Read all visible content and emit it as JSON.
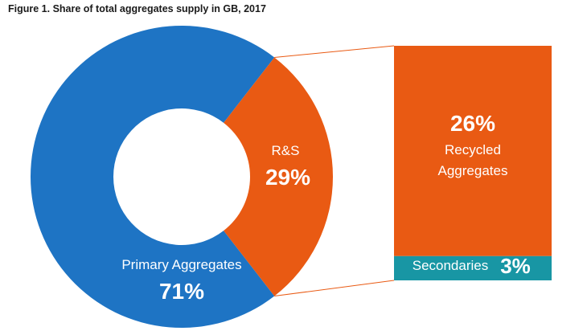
{
  "title": "Figure 1. Share of total aggregates supply in GB, 2017",
  "colors": {
    "primary": "#1e74c4",
    "rs": "#e95a13",
    "secondaries": "#1896a4",
    "connector": "#e95a13",
    "label": "#ffffff"
  },
  "labels": {
    "primary_name": "Primary Aggregates",
    "primary_pct": "71%",
    "rs_name": "R&S",
    "rs_pct": "29%",
    "recycled_pct": "26%",
    "recycled_line1": "Recycled",
    "recycled_line2": "Aggregates",
    "secondaries_name": "Secondaries",
    "secondaries_pct": "3%"
  },
  "chart_data": [
    {
      "type": "pie",
      "variant": "donut",
      "categories": [
        "Primary Aggregates",
        "R&S"
      ],
      "values": [
        71,
        29
      ],
      "unit": "%"
    },
    {
      "type": "bar",
      "variant": "stacked-100",
      "breakdown_of": "R&S",
      "categories": [
        "Recycled Aggregates",
        "Secondaries"
      ],
      "values": [
        26,
        3
      ],
      "unit": "%"
    }
  ]
}
